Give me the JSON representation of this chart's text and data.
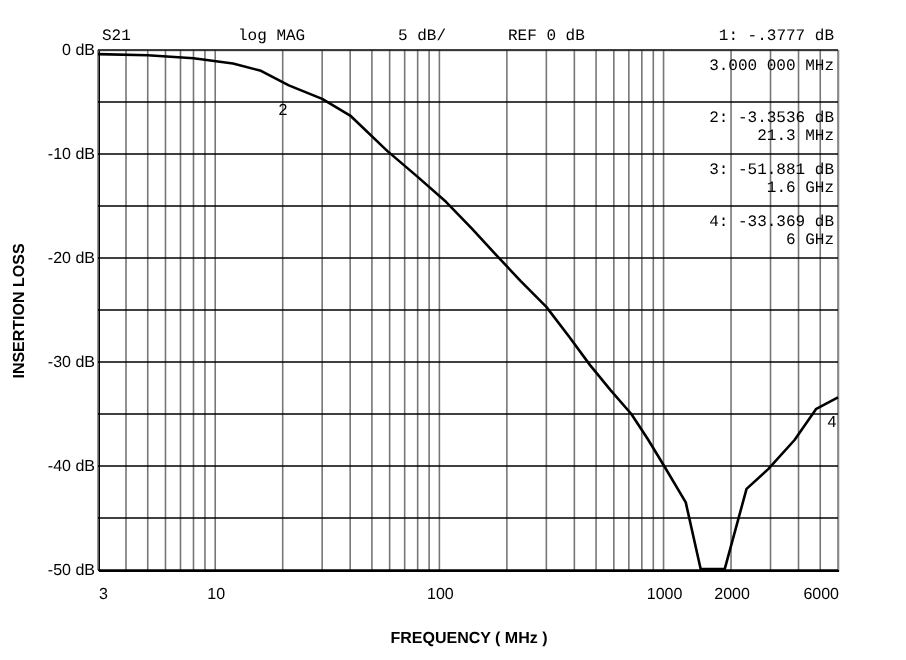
{
  "chart_data": {
    "type": "line",
    "xlabel": "FREQUENCY ( MHz )",
    "ylabel": "INSERTION LOSS",
    "x": [
      3,
      5,
      8,
      12,
      16,
      21.3,
      30,
      40,
      58.5,
      80,
      107,
      140,
      179,
      230,
      300,
      380,
      470,
      580,
      718,
      850,
      1000,
      1256,
      1464,
      1875,
      2345,
      2930,
      3840,
      4800,
      6000
    ],
    "series": [
      {
        "color": "#000000",
        "values": [
          -0.4,
          -0.5,
          -0.8,
          -1.3,
          -2.0,
          -3.4,
          -4.7,
          -6.3,
          -9.7,
          -12.2,
          -14.6,
          -17.2,
          -19.7,
          -22.2,
          -24.7,
          -27.6,
          -30.3,
          -32.7,
          -35.0,
          -37.4,
          -39.9,
          -43.5,
          -49.9,
          -49.9,
          -42.2,
          -40.3,
          -37.5,
          -34.5,
          -33.4
        ]
      }
    ],
    "xlim": [
      3,
      6000
    ],
    "ylim": [
      -50,
      0
    ],
    "xticks": [
      3,
      {
        "value": 4,
        "label": null
      },
      {
        "value": 5,
        "label": null
      },
      {
        "value": 6,
        "label": null
      },
      {
        "value": 7,
        "label": null
      },
      {
        "value": 8,
        "label": null
      },
      {
        "value": 9,
        "label": null
      },
      10,
      {
        "value": 20,
        "label": null
      },
      {
        "value": 30,
        "label": null
      },
      {
        "value": 40,
        "label": null
      },
      {
        "value": 50,
        "label": null
      },
      {
        "value": 60,
        "label": null
      },
      {
        "value": 70,
        "label": null
      },
      {
        "value": 80,
        "label": null
      },
      {
        "value": 90,
        "label": null
      },
      100,
      {
        "value": 200,
        "label": null
      },
      {
        "value": 300,
        "label": null
      },
      {
        "value": 400,
        "label": null
      },
      {
        "value": 500,
        "label": null
      },
      {
        "value": 600,
        "label": null
      },
      {
        "value": 700,
        "label": null
      },
      {
        "value": 800,
        "label": null
      },
      {
        "value": 900,
        "label": null
      },
      1000,
      2000,
      {
        "value": 3000,
        "label": null
      },
      {
        "value": 4000,
        "label": null
      },
      {
        "value": 5000,
        "label": null
      },
      6000
    ],
    "yticks": [
      {
        "value": 0,
        "label": "0 dB"
      },
      {
        "value": -5,
        "label": null
      },
      {
        "value": -10,
        "label": "-10 dB"
      },
      {
        "value": -15,
        "label": null
      },
      {
        "value": -20,
        "label": "-20 dB"
      },
      {
        "value": -25,
        "label": null
      },
      {
        "value": -30,
        "label": "-30 dB"
      },
      {
        "value": -35,
        "label": null
      },
      {
        "value": -40,
        "label": "-40 dB"
      },
      {
        "value": -45,
        "label": null
      },
      {
        "value": -50,
        "label": "-50 dB"
      }
    ],
    "log": "x",
    "grid": true,
    "marker": "none",
    "line_style": "solid",
    "annotations": [
      "S21",
      "log MAG",
      "5 dB/",
      "REF 0 dB",
      "1: -.3777 dB\n3.000 000 MHz",
      "2: -3.3536 dB\n21.3 MHz",
      "3: -51.881 dB\n1.6 GHz",
      "4: -33.369 dB\n6 GHz",
      {
        "text": "2",
        "x": 21.3,
        "y": -3.3536
      },
      {
        "text": "4",
        "x": 6000,
        "y": -33.369
      }
    ]
  }
}
